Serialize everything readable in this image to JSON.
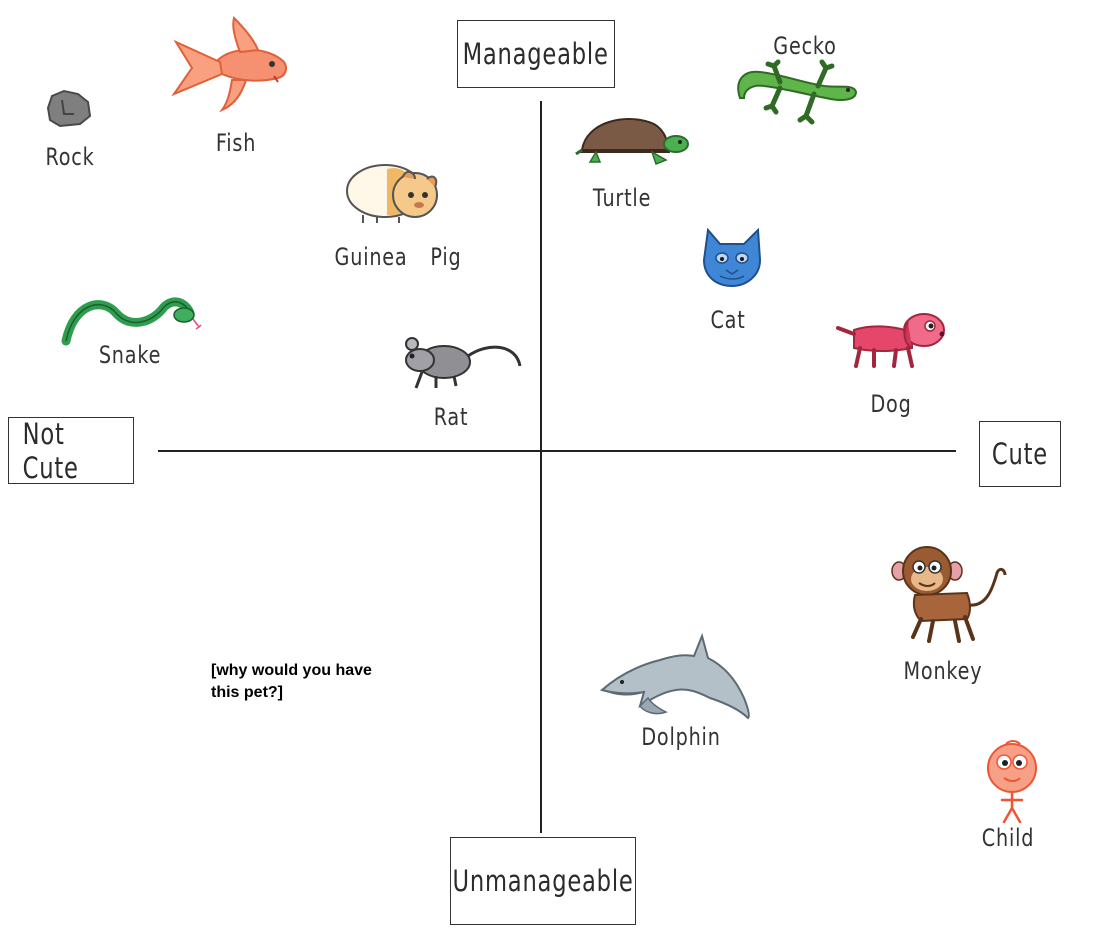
{
  "axes": {
    "top": "Manageable",
    "bottom": "Unmanageable",
    "left": "Not Cute",
    "right": "Cute"
  },
  "note": "[why would you have this pet?]",
  "pets": [
    {
      "name": "Rock",
      "icon": "rock-icon",
      "color": "#7a7a7a"
    },
    {
      "name": "Fish",
      "icon": "fish-icon",
      "color": "#f07850"
    },
    {
      "name": "Guinea Pig",
      "icon": "guinea-pig-icon",
      "color": "#e0b070"
    },
    {
      "name": "Snake",
      "icon": "snake-icon",
      "color": "#2e9e4e"
    },
    {
      "name": "Rat",
      "icon": "rat-icon",
      "color": "#8f8f94"
    },
    {
      "name": "Turtle",
      "icon": "turtle-icon",
      "color": "#7a5a44"
    },
    {
      "name": "Gecko",
      "icon": "gecko-icon",
      "color": "#5fb54a"
    },
    {
      "name": "Cat",
      "icon": "cat-icon",
      "color": "#3f86d6"
    },
    {
      "name": "Dog",
      "icon": "dog-icon",
      "color": "#e4476a"
    },
    {
      "name": "Monkey",
      "icon": "monkey-icon",
      "color": "#9a5a32"
    },
    {
      "name": "Dolphin",
      "icon": "dolphin-icon",
      "color": "#9aa8b2"
    },
    {
      "name": "Child",
      "icon": "child-icon",
      "color": "#ee5533"
    }
  ]
}
